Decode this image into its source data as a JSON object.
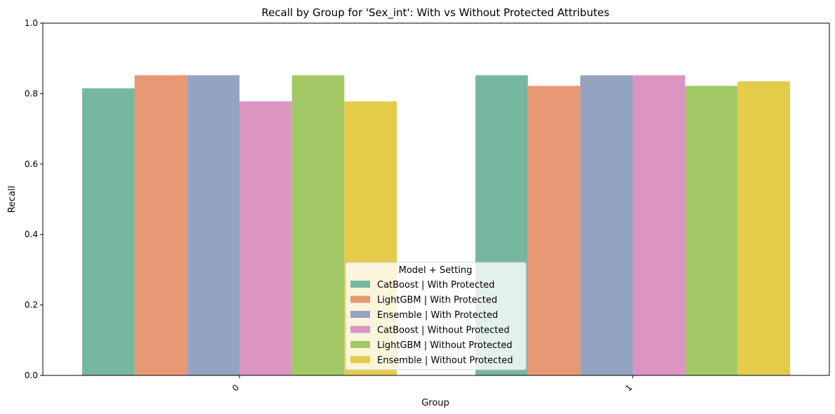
{
  "chart_data": {
    "type": "bar",
    "title": "Recall by Group for 'Sex_int': With vs Without Protected Attributes",
    "xlabel": "Group",
    "ylabel": "Recall",
    "categories": [
      "0",
      "1"
    ],
    "ylim": [
      0,
      1
    ],
    "yticks": [
      "0.0",
      "0.2",
      "0.4",
      "0.6",
      "0.8",
      "1.0"
    ],
    "grid": false,
    "legend": {
      "title": "Model + Setting",
      "placement": "lower center"
    },
    "series": [
      {
        "name": "CatBoost | With Protected",
        "color": "#76b7a0",
        "values": [
          0.815,
          0.852
        ]
      },
      {
        "name": "LightGBM | With Protected",
        "color": "#e99874",
        "values": [
          0.852,
          0.822
        ]
      },
      {
        "name": "Ensemble | With Protected",
        "color": "#95a3c2",
        "values": [
          0.852,
          0.852
        ]
      },
      {
        "name": "CatBoost | Without Protected",
        "color": "#db95c0",
        "values": [
          0.778,
          0.852
        ]
      },
      {
        "name": "LightGBM | Without Protected",
        "color": "#a3c866",
        "values": [
          0.852,
          0.822
        ]
      },
      {
        "name": "Ensemble | Without Protected",
        "color": "#e4cb4a",
        "values": [
          0.778,
          0.835
        ]
      }
    ]
  }
}
